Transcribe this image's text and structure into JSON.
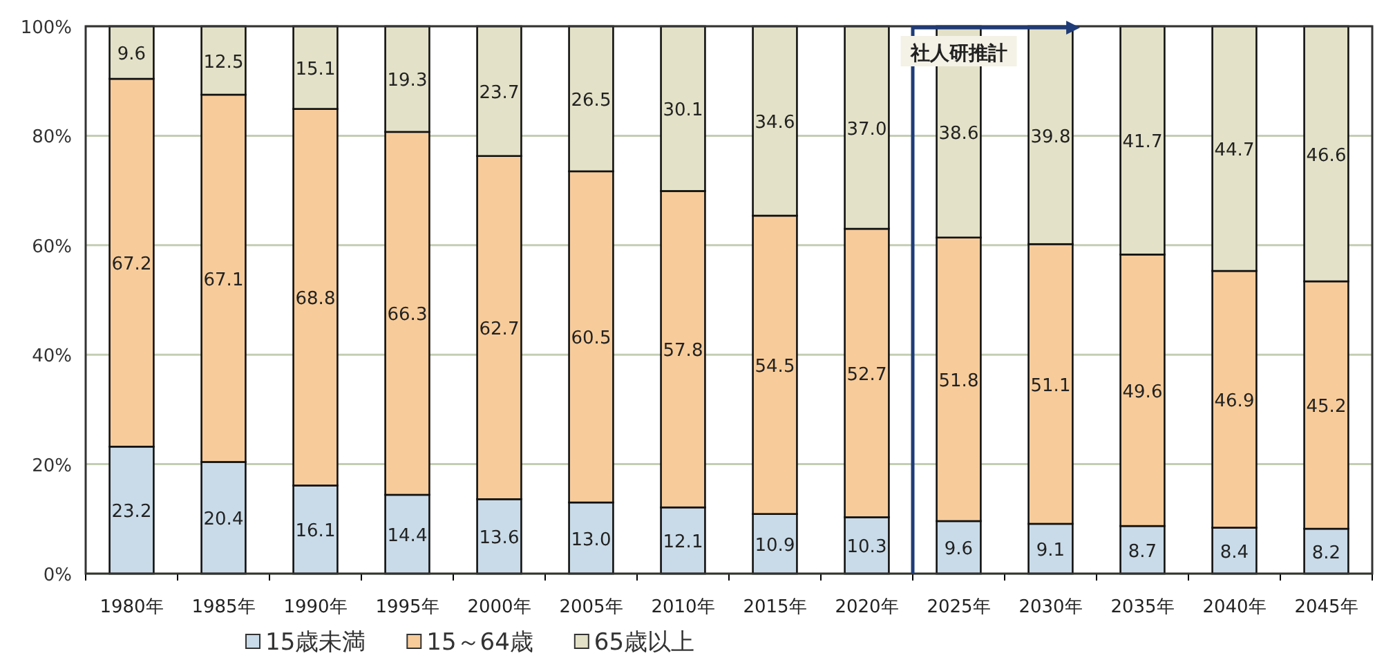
{
  "chart_data": {
    "type": "bar",
    "stacked": true,
    "legend": "bottom",
    "grid": "y",
    "categories": [
      "1980年",
      "1985年",
      "1990年",
      "1995年",
      "2000年",
      "2005年",
      "2010年",
      "2015年",
      "2020年",
      "2025年",
      "2030年",
      "2035年",
      "2040年",
      "2045年"
    ],
    "series": [
      {
        "name": "15歳未満",
        "color": "#c9dbe8",
        "values": [
          23.2,
          20.4,
          16.1,
          14.4,
          13.6,
          13.0,
          12.1,
          10.9,
          10.3,
          9.6,
          9.1,
          8.7,
          8.4,
          8.2
        ],
        "value_labels": [
          "23.2",
          "20.4",
          "16.1",
          "14.4",
          "13.6",
          "13.0",
          "12.1",
          "10.9",
          "10.3",
          "9.6",
          "9.1",
          "8.7",
          "8.4",
          "8.2"
        ]
      },
      {
        "name": "15～64歳",
        "color": "#f7cc9a",
        "values": [
          67.2,
          67.1,
          68.8,
          66.3,
          62.7,
          60.5,
          57.8,
          54.5,
          52.7,
          51.8,
          51.1,
          49.6,
          46.9,
          45.2
        ],
        "value_labels": [
          "67.2",
          "67.1",
          "68.8",
          "66.3",
          "62.7",
          "60.5",
          "57.8",
          "54.5",
          "52.7",
          "51.8",
          "51.1",
          "49.6",
          "46.9",
          "45.2"
        ]
      },
      {
        "name": "65歳以上",
        "color": "#e3e1c7",
        "values": [
          9.6,
          12.5,
          15.1,
          19.3,
          23.7,
          26.5,
          30.1,
          34.6,
          37.0,
          38.6,
          39.8,
          41.7,
          44.7,
          46.6
        ],
        "value_labels": [
          "9.6",
          "12.5",
          "15.1",
          "19.3",
          "23.7",
          "26.5",
          "30.1",
          "34.6",
          "37.0",
          "38.6",
          "39.8",
          "41.7",
          "44.7",
          "46.6"
        ]
      }
    ],
    "ylim": [
      0,
      100
    ],
    "yticks": [
      {
        "value": 0,
        "label": "0%"
      },
      {
        "value": 20,
        "label": "20%"
      },
      {
        "value": 40,
        "label": "40%"
      },
      {
        "value": 60,
        "label": "60%"
      },
      {
        "value": 80,
        "label": "80%"
      },
      {
        "value": 100,
        "label": "100%"
      }
    ],
    "annotations": [
      "社人研推計"
    ]
  }
}
